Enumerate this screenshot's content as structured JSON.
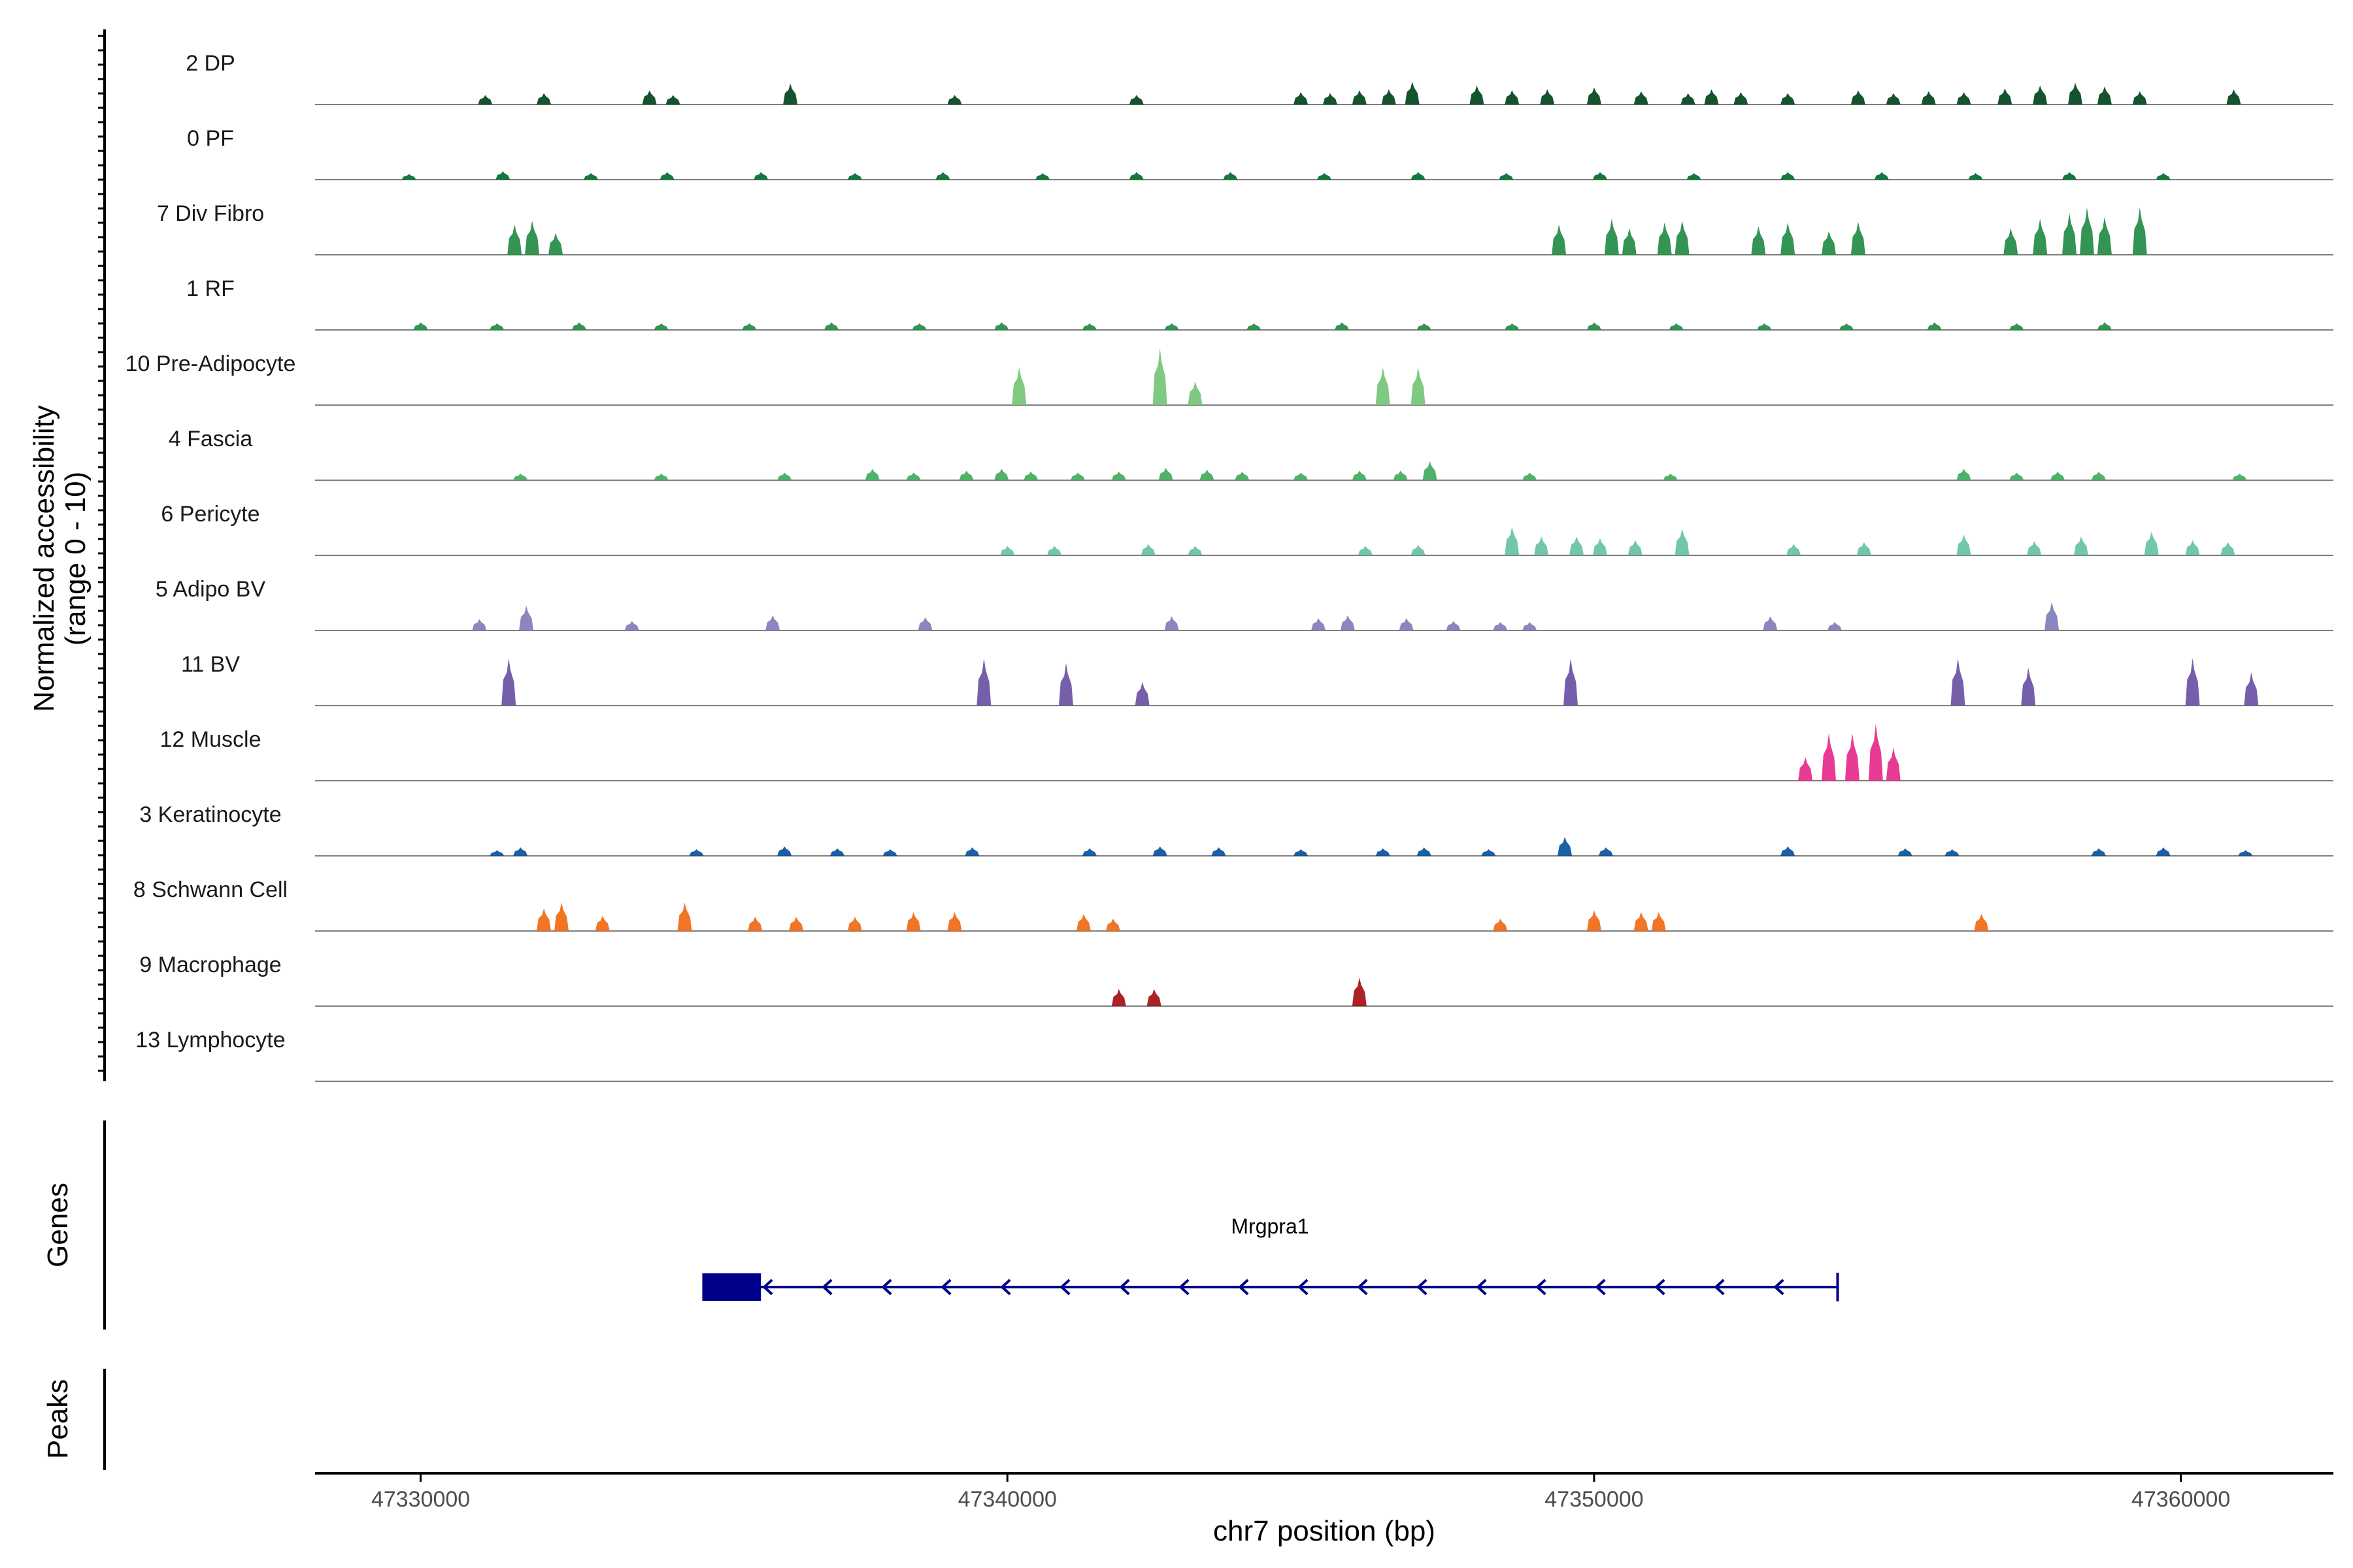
{
  "chart_data": {
    "type": "area",
    "xlabel": "chr7 position (bp)",
    "ylabel": [
      "Normalized accessibility",
      "(range 0 - 10)"
    ],
    "ylim": [
      0,
      10
    ],
    "xlim": [
      47328200,
      47362600
    ],
    "xticks": [
      47330000,
      47340000,
      47350000,
      47360000
    ],
    "xtick_labels": [
      "47330000",
      "47340000",
      "47350000",
      "47360000"
    ],
    "genes_label": "Genes",
    "peaks_label": "Peaks",
    "gene": {
      "name": "Mrgpra1",
      "strand": "-",
      "start": 47334800,
      "end": 47354150,
      "exons": [
        [
          47334800,
          47335800
        ]
      ],
      "color": "#00008B"
    },
    "tracks": [
      {
        "label": "2 DP",
        "color": "#00441B",
        "peaks": [
          [
            47331100,
            1.0
          ],
          [
            47332100,
            1.2
          ],
          [
            47333900,
            1.5
          ],
          [
            47334300,
            1.0
          ],
          [
            47336300,
            2.2
          ],
          [
            47339100,
            1.0
          ],
          [
            47342200,
            1.0
          ],
          [
            47345000,
            1.3
          ],
          [
            47345500,
            1.2
          ],
          [
            47346000,
            1.5
          ],
          [
            47346500,
            1.6
          ],
          [
            47346900,
            2.4
          ],
          [
            47348000,
            2.0
          ],
          [
            47348600,
            1.5
          ],
          [
            47349200,
            1.6
          ],
          [
            47350000,
            1.8
          ],
          [
            47350800,
            1.4
          ],
          [
            47351600,
            1.2
          ],
          [
            47352000,
            1.6
          ],
          [
            47352500,
            1.3
          ],
          [
            47353300,
            1.2
          ],
          [
            47354500,
            1.5
          ],
          [
            47355100,
            1.2
          ],
          [
            47355700,
            1.4
          ],
          [
            47356300,
            1.3
          ],
          [
            47357000,
            1.7
          ],
          [
            47357600,
            2.0
          ],
          [
            47358200,
            2.3
          ],
          [
            47358700,
            1.9
          ],
          [
            47359300,
            1.4
          ],
          [
            47360900,
            1.6
          ]
        ]
      },
      {
        "label": "0 PF",
        "color": "#006D2C",
        "peaks": [
          [
            47329800,
            0.6
          ],
          [
            47331400,
            0.9
          ],
          [
            47332900,
            0.7
          ],
          [
            47334200,
            0.8
          ],
          [
            47335800,
            0.8
          ],
          [
            47337400,
            0.7
          ],
          [
            47338900,
            0.8
          ],
          [
            47340600,
            0.7
          ],
          [
            47342200,
            0.8
          ],
          [
            47343800,
            0.8
          ],
          [
            47345400,
            0.7
          ],
          [
            47347000,
            0.8
          ],
          [
            47348500,
            0.7
          ],
          [
            47350100,
            0.8
          ],
          [
            47351700,
            0.7
          ],
          [
            47353300,
            0.8
          ],
          [
            47354900,
            0.8
          ],
          [
            47356500,
            0.7
          ],
          [
            47358100,
            0.8
          ],
          [
            47359700,
            0.7
          ]
        ]
      },
      {
        "label": "7 Div Fibro",
        "color": "#238B45",
        "peaks": [
          [
            47331600,
            3.2
          ],
          [
            47331900,
            3.6
          ],
          [
            47332300,
            2.3
          ],
          [
            47349400,
            3.2
          ],
          [
            47350300,
            3.8
          ],
          [
            47350600,
            2.8
          ],
          [
            47351200,
            3.4
          ],
          [
            47351500,
            3.6
          ],
          [
            47352800,
            3.0
          ],
          [
            47353300,
            3.4
          ],
          [
            47354000,
            2.5
          ],
          [
            47354500,
            3.5
          ],
          [
            47357100,
            2.8
          ],
          [
            47357600,
            3.8
          ],
          [
            47358100,
            4.4
          ],
          [
            47358400,
            5.0
          ],
          [
            47358700,
            4.0
          ],
          [
            47359300,
            5.0
          ]
        ]
      },
      {
        "label": "1 RF",
        "color": "#238B45",
        "peaks": [
          [
            47330000,
            0.8
          ],
          [
            47331300,
            0.7
          ],
          [
            47332700,
            0.8
          ],
          [
            47334100,
            0.7
          ],
          [
            47335600,
            0.7
          ],
          [
            47337000,
            0.8
          ],
          [
            47338500,
            0.7
          ],
          [
            47339900,
            0.8
          ],
          [
            47341400,
            0.7
          ],
          [
            47342800,
            0.7
          ],
          [
            47344200,
            0.7
          ],
          [
            47345700,
            0.8
          ],
          [
            47347100,
            0.7
          ],
          [
            47348600,
            0.7
          ],
          [
            47350000,
            0.8
          ],
          [
            47351400,
            0.7
          ],
          [
            47352900,
            0.7
          ],
          [
            47354300,
            0.7
          ],
          [
            47355800,
            0.8
          ],
          [
            47357200,
            0.7
          ],
          [
            47358700,
            0.8
          ]
        ]
      },
      {
        "label": "10 Pre-Adipocyte",
        "color": "#74C476",
        "peaks": [
          [
            47340200,
            4.0
          ],
          [
            47342600,
            6.0
          ],
          [
            47343200,
            2.5
          ],
          [
            47346400,
            4.0
          ],
          [
            47347000,
            4.0
          ]
        ]
      },
      {
        "label": "4 Fascia",
        "color": "#41AB5D",
        "peaks": [
          [
            47331700,
            0.7
          ],
          [
            47334100,
            0.7
          ],
          [
            47336200,
            0.8
          ],
          [
            47337700,
            1.2
          ],
          [
            47338400,
            0.8
          ],
          [
            47339300,
            1.0
          ],
          [
            47339900,
            1.2
          ],
          [
            47340400,
            0.9
          ],
          [
            47341200,
            0.8
          ],
          [
            47341900,
            0.9
          ],
          [
            47342700,
            1.3
          ],
          [
            47343400,
            1.1
          ],
          [
            47344000,
            0.9
          ],
          [
            47345000,
            0.8
          ],
          [
            47346000,
            1.0
          ],
          [
            47346700,
            1.0
          ],
          [
            47347200,
            2.0
          ],
          [
            47348900,
            0.8
          ],
          [
            47351300,
            0.7
          ],
          [
            47356300,
            1.2
          ],
          [
            47357200,
            0.8
          ],
          [
            47357900,
            0.9
          ],
          [
            47358600,
            0.9
          ],
          [
            47361000,
            0.7
          ]
        ]
      },
      {
        "label": "6 Pericyte",
        "color": "#66C2A4",
        "peaks": [
          [
            47340000,
            1.0
          ],
          [
            47340800,
            1.0
          ],
          [
            47342400,
            1.2
          ],
          [
            47343200,
            1.0
          ],
          [
            47346100,
            1.0
          ],
          [
            47347000,
            1.1
          ],
          [
            47348600,
            3.0
          ],
          [
            47349100,
            2.0
          ],
          [
            47349700,
            2.0
          ],
          [
            47350100,
            1.8
          ],
          [
            47350700,
            1.6
          ],
          [
            47351500,
            2.8
          ],
          [
            47353400,
            1.2
          ],
          [
            47354600,
            1.4
          ],
          [
            47356300,
            2.2
          ],
          [
            47357500,
            1.5
          ],
          [
            47358300,
            2.0
          ],
          [
            47359500,
            2.5
          ],
          [
            47360200,
            1.6
          ],
          [
            47360800,
            1.4
          ]
        ]
      },
      {
        "label": "5 Adipo BV",
        "color": "#807DBA",
        "peaks": [
          [
            47331000,
            1.2
          ],
          [
            47331800,
            2.6
          ],
          [
            47333600,
            1.0
          ],
          [
            47336000,
            1.6
          ],
          [
            47338600,
            1.4
          ],
          [
            47342800,
            1.5
          ],
          [
            47345300,
            1.3
          ],
          [
            47345800,
            1.6
          ],
          [
            47346800,
            1.3
          ],
          [
            47347600,
            1.0
          ],
          [
            47348400,
            0.9
          ],
          [
            47348900,
            0.9
          ],
          [
            47353000,
            1.5
          ],
          [
            47354100,
            0.9
          ],
          [
            47357800,
            3.0
          ]
        ]
      },
      {
        "label": "11 BV",
        "color": "#6A51A3",
        "peaks": [
          [
            47331500,
            5.0
          ],
          [
            47339600,
            5.0
          ],
          [
            47341000,
            4.5
          ],
          [
            47342300,
            2.5
          ],
          [
            47349600,
            5.0
          ],
          [
            47356200,
            5.0
          ],
          [
            47357400,
            4.0
          ],
          [
            47360200,
            5.0
          ],
          [
            47361200,
            3.5
          ]
        ]
      },
      {
        "label": "12 Muscle",
        "color": "#E7298A",
        "peaks": [
          [
            47353600,
            2.5
          ],
          [
            47354000,
            5.0
          ],
          [
            47354400,
            5.0
          ],
          [
            47354800,
            6.0
          ],
          [
            47355100,
            3.5
          ]
        ]
      },
      {
        "label": "3 Keratinocyte",
        "color": "#08519C",
        "peaks": [
          [
            47331300,
            0.6
          ],
          [
            47331700,
            0.9
          ],
          [
            47334700,
            0.7
          ],
          [
            47336200,
            1.0
          ],
          [
            47337100,
            0.8
          ],
          [
            47338000,
            0.7
          ],
          [
            47339400,
            0.9
          ],
          [
            47341400,
            0.8
          ],
          [
            47342600,
            1.0
          ],
          [
            47343600,
            0.9
          ],
          [
            47345000,
            0.7
          ],
          [
            47346400,
            0.8
          ],
          [
            47347100,
            0.9
          ],
          [
            47348200,
            0.7
          ],
          [
            47349500,
            2.0
          ],
          [
            47350200,
            0.9
          ],
          [
            47353300,
            1.0
          ],
          [
            47355300,
            0.8
          ],
          [
            47356100,
            0.7
          ],
          [
            47358600,
            0.8
          ],
          [
            47359700,
            0.9
          ],
          [
            47361100,
            0.6
          ]
        ]
      },
      {
        "label": "8 Schwann Cell",
        "color": "#F16913",
        "peaks": [
          [
            47332100,
            2.4
          ],
          [
            47332400,
            3.0
          ],
          [
            47333100,
            1.6
          ],
          [
            47334500,
            3.0
          ],
          [
            47335700,
            1.5
          ],
          [
            47336400,
            1.5
          ],
          [
            47337400,
            1.5
          ],
          [
            47338400,
            2.0
          ],
          [
            47339100,
            2.0
          ],
          [
            47341300,
            1.8
          ],
          [
            47341800,
            1.3
          ],
          [
            47348400,
            1.3
          ],
          [
            47350000,
            2.2
          ],
          [
            47350800,
            2.0
          ],
          [
            47351100,
            2.0
          ],
          [
            47356600,
            1.8
          ]
        ]
      },
      {
        "label": "9 Macrophage",
        "color": "#A50F15",
        "peaks": [
          [
            47341900,
            1.8
          ],
          [
            47342500,
            1.8
          ],
          [
            47346000,
            3.0
          ]
        ]
      },
      {
        "label": "13 Lymphocyte",
        "color": "#525252",
        "peaks": []
      }
    ]
  }
}
